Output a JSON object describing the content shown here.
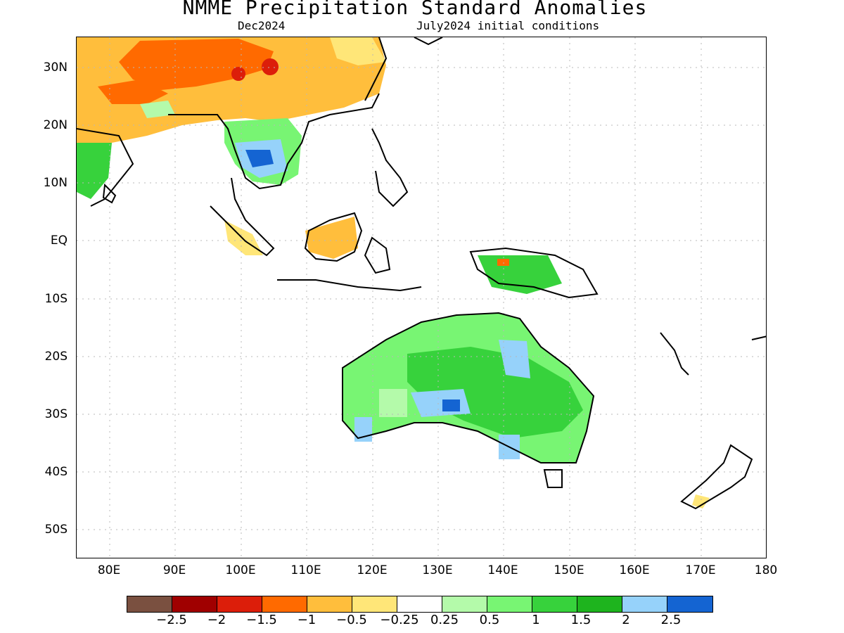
{
  "header": {
    "title": "NMME Precipitation Standard Anomalies",
    "valid_month": "Dec2024",
    "initial_conditions": "July2024 initial conditions"
  },
  "axes": {
    "lat_labels": [
      "30N",
      "20N",
      "10N",
      "EQ",
      "10S",
      "20S",
      "30S",
      "40S",
      "50S"
    ],
    "lon_labels": [
      "80E",
      "90E",
      "100E",
      "110E",
      "120E",
      "130E",
      "140E",
      "150E",
      "160E",
      "170E",
      "180"
    ]
  },
  "colorbar": {
    "colors": [
      "#7a5040",
      "#a00000",
      "#dc1e0a",
      "#ff6a00",
      "#ffbe3c",
      "#ffe678",
      "#ffffff",
      "#b4faaa",
      "#78f573",
      "#37d23c",
      "#1eb41e",
      "#96d2fa",
      "#1464d2"
    ],
    "labels": [
      "−2.5",
      "−2",
      "−1.5",
      "−1",
      "−0.5",
      "−0.25",
      "0.25",
      "0.5",
      "1",
      "1.5",
      "2",
      "2.5"
    ]
  },
  "map_data": {
    "region": "Indian Ocean / Maritime Continent / Australia / Western Pacific",
    "lon_range": [
      75,
      180
    ],
    "lat_range": [
      -55,
      35
    ],
    "grid": true,
    "notable_anomalies": [
      {
        "area": "South Asia / Tibetan Plateau",
        "category": "dry (-1 to -1.5)"
      },
      {
        "area": "Southern China",
        "category": "dry (-0.5 to -1)"
      },
      {
        "area": "Cambodia / Thailand",
        "category": "wet (2 to 2.5+)"
      },
      {
        "area": "Borneo",
        "category": "dry (-0.5 to -1)"
      },
      {
        "area": "New Guinea",
        "category": "wet (0.5 to 1.5)"
      },
      {
        "area": "Australia",
        "category": "wet (0.5 to 2.5)"
      }
    ]
  }
}
